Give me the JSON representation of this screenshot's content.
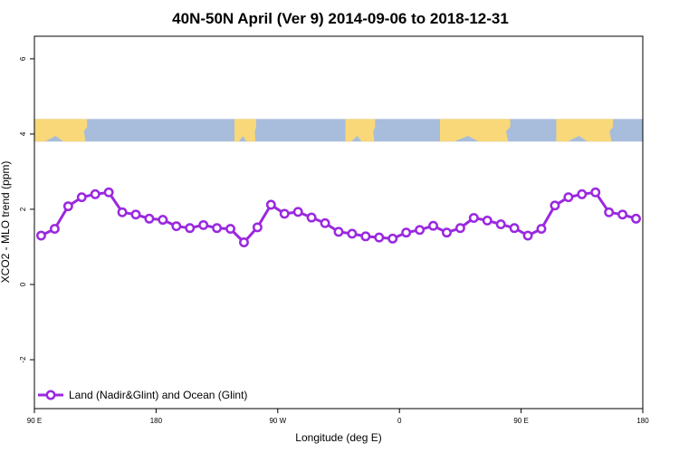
{
  "chart_data": {
    "type": "line",
    "title": "40N-50N April (Ver 9)   2014-09-06 to 2018-12-31",
    "xlabel": "Longitude (deg E)",
    "ylabel": "XCO2 - MLO trend (ppm)",
    "xlim": [
      90,
      540
    ],
    "ylim": [
      -3.3,
      6.6
    ],
    "x_ticks": [
      {
        "value": 90,
        "label": "90 E"
      },
      {
        "value": 180,
        "label": "180"
      },
      {
        "value": 270,
        "label": "90 W"
      },
      {
        "value": 360,
        "label": "0"
      },
      {
        "value": 450,
        "label": "90 E"
      },
      {
        "value": 540,
        "label": "180"
      }
    ],
    "y_ticks": [
      {
        "value": -2,
        "label": "-2"
      },
      {
        "value": 0,
        "label": "0"
      },
      {
        "value": 2,
        "label": "2"
      },
      {
        "value": 4,
        "label": "4"
      },
      {
        "value": 6,
        "label": "6"
      }
    ],
    "map_strip": {
      "ymin": 3.8,
      "ymax": 4.4,
      "ocean_color": "#a8bcdc",
      "land_color": "#f8d878"
    },
    "series": [
      {
        "name": "Land (Nadir&Glint) and Ocean (Glint)",
        "color": "#9a28e0",
        "x": [
          95,
          105,
          115,
          125,
          135,
          145,
          155,
          165,
          175,
          185,
          195,
          205,
          215,
          225,
          235,
          245,
          255,
          265,
          275,
          285,
          295,
          305,
          315,
          325,
          335,
          345,
          355,
          365,
          375,
          385,
          395,
          405,
          415,
          425,
          435,
          445,
          455,
          465,
          475,
          485,
          495,
          505,
          515,
          525,
          535
        ],
        "y": [
          1.3,
          1.48,
          2.08,
          2.32,
          2.4,
          2.45,
          1.92,
          1.86,
          1.75,
          1.72,
          1.55,
          1.5,
          1.58,
          1.5,
          1.48,
          1.12,
          1.52,
          2.12,
          1.88,
          1.93,
          1.78,
          1.63,
          1.4,
          1.35,
          1.28,
          1.25,
          1.22,
          1.38,
          1.45,
          1.56,
          1.38,
          1.5,
          1.77,
          1.7,
          1.6,
          1.5,
          1.3,
          1.48,
          2.1,
          2.32,
          2.4,
          2.45,
          1.92,
          1.86,
          1.75
        ]
      }
    ],
    "legend_position": "bottom-left",
    "grid": false
  }
}
